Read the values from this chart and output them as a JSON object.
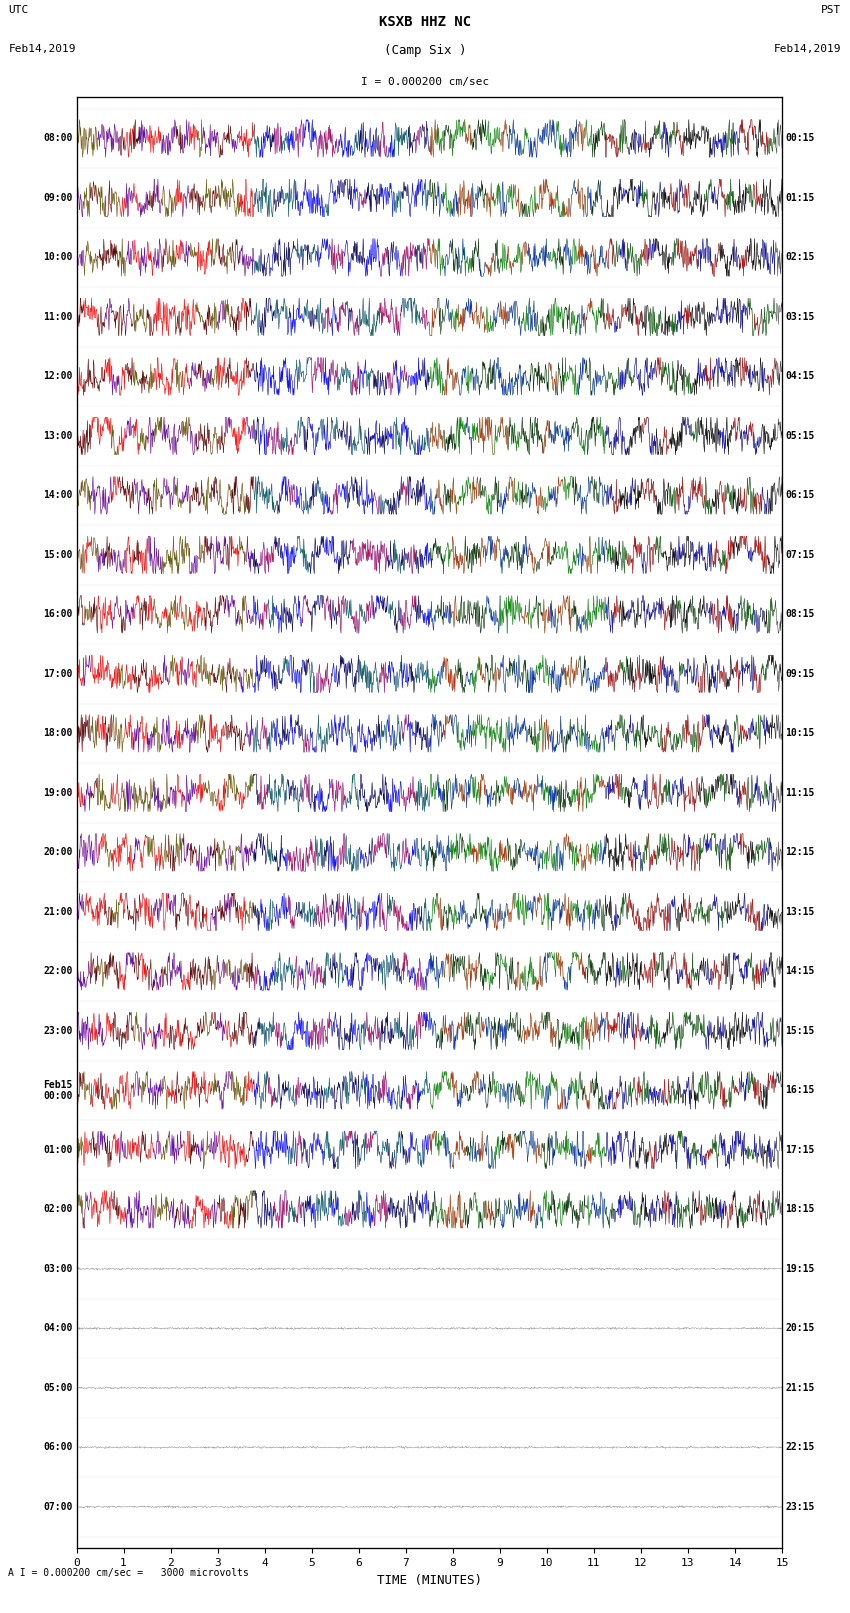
{
  "title_line1": "KSXB HHZ NC",
  "title_line2": "(Camp Six )",
  "scale_label": "I = 0.000200 cm/sec",
  "footer_label": "A I = 0.000200 cm/sec =   3000 microvolts",
  "xlabel": "TIME (MINUTES)",
  "left_label_top": "UTC",
  "left_label_date": "Feb14,2019",
  "right_label_top": "PST",
  "right_label_date": "Feb14,2019",
  "left_times": [
    "08:00",
    "09:00",
    "10:00",
    "11:00",
    "12:00",
    "13:00",
    "14:00",
    "15:00",
    "16:00",
    "17:00",
    "18:00",
    "19:00",
    "20:00",
    "21:00",
    "22:00",
    "23:00",
    "Feb15\n00:00",
    "01:00",
    "02:00",
    "03:00",
    "04:00",
    "05:00",
    "06:00",
    "07:00"
  ],
  "right_times": [
    "00:15",
    "01:15",
    "02:15",
    "03:15",
    "04:15",
    "05:15",
    "06:15",
    "07:15",
    "08:15",
    "09:15",
    "10:15",
    "11:15",
    "12:15",
    "13:15",
    "14:15",
    "15:15",
    "16:15",
    "17:15",
    "18:15",
    "19:15",
    "20:15",
    "21:15",
    "22:15",
    "23:15"
  ],
  "n_traces": 24,
  "n_active_traces": 19,
  "minutes_per_trace": 15,
  "samples_per_minute": 100,
  "bg_color": "#ffffff",
  "trace_colors": [
    "red",
    "blue",
    "green",
    "black"
  ],
  "active_amplitude": 0.35,
  "noise_amplitude": 0.08,
  "figsize": [
    8.5,
    16.13
  ],
  "dpi": 100
}
